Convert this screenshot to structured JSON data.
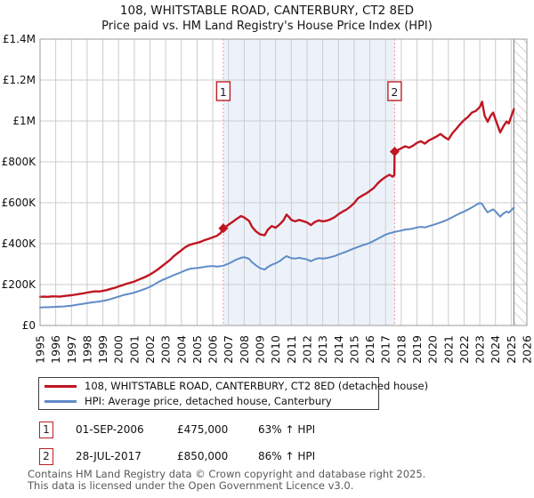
{
  "header": {
    "title": "108, WHITSTABLE ROAD, CANTERBURY, CT2 8ED",
    "subtitle": "Price paid vs. HM Land Registry's House Price Index (HPI)"
  },
  "legend": {
    "items": [
      {
        "label": "108, WHITSTABLE ROAD, CANTERBURY, CT2 8ED (detached house)",
        "color": "#c01622"
      },
      {
        "label": "HPI: Average price, detached house, Canterbury",
        "color": "#5f8cc8"
      }
    ]
  },
  "transactions": [
    {
      "num": "1",
      "date": "01-SEP-2006",
      "price": "£475,000",
      "hpi": "63% ↑ HPI"
    },
    {
      "num": "2",
      "date": "28-JUL-2017",
      "price": "£850,000",
      "hpi": "86% ↑ HPI"
    }
  ],
  "footer": {
    "line1": "Contains HM Land Registry data © Crown copyright and database right 2025.",
    "line2": "This data is licensed under the Open Government Licence v3.0."
  },
  "colors": {
    "property_line": "#c01622",
    "hpi_line": "#5f8cc8",
    "sale_dash": "#ef8c8c",
    "band_fill": "#edf2fa",
    "grid": "#cccccc",
    "plot_border": "#999999",
    "hatch": "#b8b8c0",
    "marker_box_border": "#b92025",
    "tick_text": "#111111"
  },
  "chart_data": {
    "type": "line",
    "title": "108, WHITSTABLE ROAD, CANTERBURY, CT2 8ED",
    "subtitle": "Price paid vs. HM Land Registry's House Price Index (HPI)",
    "unit": "GBP thousands",
    "xlim": [
      1995,
      2026
    ],
    "ylim": [
      0,
      1400
    ],
    "grid": true,
    "legend_position": "below",
    "x_ticks": [
      1995,
      1996,
      1997,
      1998,
      1999,
      2000,
      2001,
      2002,
      2003,
      2004,
      2005,
      2006,
      2007,
      2008,
      2009,
      2010,
      2011,
      2012,
      2013,
      2014,
      2015,
      2016,
      2017,
      2018,
      2019,
      2020,
      2021,
      2022,
      2023,
      2024,
      2025,
      2026
    ],
    "y_ticks": [
      {
        "value": 0,
        "label": "£0"
      },
      {
        "value": 200,
        "label": "£200K"
      },
      {
        "value": 400,
        "label": "£400K"
      },
      {
        "value": 600,
        "label": "£600K"
      },
      {
        "value": 800,
        "label": "£800K"
      },
      {
        "value": 1000,
        "label": "£1M"
      },
      {
        "value": 1200,
        "label": "£1.2M"
      },
      {
        "value": 1400,
        "label": "£1.4M"
      }
    ],
    "shaded_span": [
      2006.67,
      2017.58
    ],
    "hatch_span": [
      2025.17,
      2026
    ],
    "sales": [
      {
        "n": "1",
        "year": 2006.67,
        "date": "01-SEP-2006",
        "price_thousands": 475,
        "vs_hpi": "63% ↑ HPI"
      },
      {
        "n": "2",
        "year": 2017.58,
        "date": "28-JUL-2017",
        "price_thousands": 850,
        "vs_hpi": "86% ↑ HPI"
      }
    ],
    "series": [
      {
        "name": "108, WHITSTABLE ROAD, CANTERBURY, CT2 8ED (detached house)",
        "color": "#c01622",
        "width": 2.4,
        "points": [
          [
            1995.0,
            140
          ],
          [
            1995.25,
            141
          ],
          [
            1995.5,
            140
          ],
          [
            1995.75,
            142
          ],
          [
            1996.0,
            142
          ],
          [
            1996.25,
            141
          ],
          [
            1996.5,
            144
          ],
          [
            1996.75,
            146
          ],
          [
            1997.0,
            148
          ],
          [
            1997.25,
            151
          ],
          [
            1997.5,
            154
          ],
          [
            1997.75,
            157
          ],
          [
            1998.0,
            161
          ],
          [
            1998.25,
            164
          ],
          [
            1998.5,
            167
          ],
          [
            1998.75,
            166
          ],
          [
            1999.0,
            169
          ],
          [
            1999.25,
            173
          ],
          [
            1999.5,
            179
          ],
          [
            1999.75,
            184
          ],
          [
            2000.0,
            191
          ],
          [
            2000.25,
            197
          ],
          [
            2000.5,
            204
          ],
          [
            2000.75,
            209
          ],
          [
            2001.0,
            215
          ],
          [
            2001.25,
            223
          ],
          [
            2001.5,
            231
          ],
          [
            2001.75,
            239
          ],
          [
            2002.0,
            249
          ],
          [
            2002.25,
            261
          ],
          [
            2002.5,
            274
          ],
          [
            2002.75,
            289
          ],
          [
            2003.0,
            304
          ],
          [
            2003.25,
            319
          ],
          [
            2003.5,
            338
          ],
          [
            2003.75,
            353
          ],
          [
            2004.0,
            368
          ],
          [
            2004.25,
            383
          ],
          [
            2004.5,
            393
          ],
          [
            2004.75,
            399
          ],
          [
            2005.0,
            404
          ],
          [
            2005.25,
            410
          ],
          [
            2005.5,
            418
          ],
          [
            2005.75,
            424
          ],
          [
            2006.0,
            431
          ],
          [
            2006.25,
            438
          ],
          [
            2006.5,
            452
          ],
          [
            2006.67,
            475
          ],
          [
            2007.0,
            492
          ],
          [
            2007.25,
            506
          ],
          [
            2007.5,
            520
          ],
          [
            2007.8,
            535
          ],
          [
            2008.0,
            528
          ],
          [
            2008.3,
            512
          ],
          [
            2008.5,
            482
          ],
          [
            2008.75,
            460
          ],
          [
            2009.0,
            446
          ],
          [
            2009.3,
            441
          ],
          [
            2009.5,
            468
          ],
          [
            2009.75,
            486
          ],
          [
            2010.0,
            478
          ],
          [
            2010.25,
            494
          ],
          [
            2010.5,
            514
          ],
          [
            2010.7,
            542
          ],
          [
            2010.9,
            526
          ],
          [
            2011.0,
            516
          ],
          [
            2011.25,
            509
          ],
          [
            2011.5,
            516
          ],
          [
            2011.75,
            510
          ],
          [
            2012.0,
            504
          ],
          [
            2012.25,
            491
          ],
          [
            2012.5,
            506
          ],
          [
            2012.75,
            514
          ],
          [
            2013.0,
            509
          ],
          [
            2013.25,
            512
          ],
          [
            2013.5,
            519
          ],
          [
            2013.75,
            529
          ],
          [
            2014.0,
            544
          ],
          [
            2014.25,
            556
          ],
          [
            2014.5,
            566
          ],
          [
            2014.75,
            581
          ],
          [
            2015.0,
            598
          ],
          [
            2015.25,
            622
          ],
          [
            2015.5,
            634
          ],
          [
            2015.75,
            645
          ],
          [
            2016.0,
            658
          ],
          [
            2016.25,
            672
          ],
          [
            2016.5,
            695
          ],
          [
            2016.75,
            712
          ],
          [
            2017.0,
            726
          ],
          [
            2017.25,
            737
          ],
          [
            2017.45,
            728
          ],
          [
            2017.56,
            735
          ],
          [
            2017.58,
            850
          ],
          [
            2017.75,
            856
          ],
          [
            2018.0,
            866
          ],
          [
            2018.25,
            876
          ],
          [
            2018.5,
            869
          ],
          [
            2018.75,
            879
          ],
          [
            2019.0,
            893
          ],
          [
            2019.25,
            901
          ],
          [
            2019.5,
            889
          ],
          [
            2019.75,
            904
          ],
          [
            2020.0,
            914
          ],
          [
            2020.25,
            924
          ],
          [
            2020.5,
            936
          ],
          [
            2020.75,
            921
          ],
          [
            2021.0,
            909
          ],
          [
            2021.25,
            939
          ],
          [
            2021.5,
            961
          ],
          [
            2021.75,
            984
          ],
          [
            2022.0,
            1004
          ],
          [
            2022.25,
            1019
          ],
          [
            2022.5,
            1041
          ],
          [
            2022.75,
            1049
          ],
          [
            2023.0,
            1068
          ],
          [
            2023.15,
            1094
          ],
          [
            2023.3,
            1028
          ],
          [
            2023.5,
            996
          ],
          [
            2023.7,
            1026
          ],
          [
            2023.85,
            1041
          ],
          [
            2024.0,
            1008
          ],
          [
            2024.3,
            944
          ],
          [
            2024.5,
            973
          ],
          [
            2024.7,
            997
          ],
          [
            2024.85,
            988
          ],
          [
            2025.0,
            1022
          ],
          [
            2025.17,
            1058
          ]
        ]
      },
      {
        "name": "HPI: Average price, detached house, Canterbury",
        "color": "#5f8cc8",
        "width": 2,
        "points": [
          [
            1995.0,
            88
          ],
          [
            1995.25,
            89
          ],
          [
            1995.5,
            89
          ],
          [
            1995.75,
            90
          ],
          [
            1996.0,
            91
          ],
          [
            1996.25,
            92
          ],
          [
            1996.5,
            93
          ],
          [
            1996.75,
            95
          ],
          [
            1997.0,
            97
          ],
          [
            1997.25,
            100
          ],
          [
            1997.5,
            103
          ],
          [
            1997.75,
            106
          ],
          [
            1998.0,
            109
          ],
          [
            1998.25,
            112
          ],
          [
            1998.5,
            115
          ],
          [
            1998.75,
            117
          ],
          [
            1999.0,
            120
          ],
          [
            1999.25,
            124
          ],
          [
            1999.5,
            129
          ],
          [
            1999.75,
            135
          ],
          [
            2000.0,
            141
          ],
          [
            2000.25,
            147
          ],
          [
            2000.5,
            152
          ],
          [
            2000.75,
            156
          ],
          [
            2001.0,
            161
          ],
          [
            2001.25,
            167
          ],
          [
            2001.5,
            174
          ],
          [
            2001.75,
            181
          ],
          [
            2002.0,
            189
          ],
          [
            2002.25,
            199
          ],
          [
            2002.5,
            211
          ],
          [
            2002.75,
            221
          ],
          [
            2003.0,
            229
          ],
          [
            2003.25,
            237
          ],
          [
            2003.5,
            246
          ],
          [
            2003.75,
            253
          ],
          [
            2004.0,
            261
          ],
          [
            2004.25,
            269
          ],
          [
            2004.5,
            276
          ],
          [
            2004.75,
            279
          ],
          [
            2005.0,
            281
          ],
          [
            2005.25,
            284
          ],
          [
            2005.5,
            287
          ],
          [
            2005.75,
            289
          ],
          [
            2006.0,
            291
          ],
          [
            2006.25,
            288
          ],
          [
            2006.5,
            290
          ],
          [
            2006.67,
            292
          ],
          [
            2007.0,
            302
          ],
          [
            2007.25,
            312
          ],
          [
            2007.5,
            322
          ],
          [
            2007.8,
            331
          ],
          [
            2008.0,
            334
          ],
          [
            2008.3,
            326
          ],
          [
            2008.5,
            309
          ],
          [
            2008.75,
            294
          ],
          [
            2009.0,
            281
          ],
          [
            2009.3,
            273
          ],
          [
            2009.5,
            286
          ],
          [
            2009.75,
            297
          ],
          [
            2010.0,
            304
          ],
          [
            2010.25,
            314
          ],
          [
            2010.5,
            329
          ],
          [
            2010.7,
            339
          ],
          [
            2010.9,
            332
          ],
          [
            2011.0,
            329
          ],
          [
            2011.25,
            327
          ],
          [
            2011.5,
            331
          ],
          [
            2011.75,
            327
          ],
          [
            2012.0,
            323
          ],
          [
            2012.25,
            314
          ],
          [
            2012.5,
            324
          ],
          [
            2012.75,
            329
          ],
          [
            2013.0,
            327
          ],
          [
            2013.25,
            329
          ],
          [
            2013.5,
            334
          ],
          [
            2013.75,
            339
          ],
          [
            2014.0,
            347
          ],
          [
            2014.25,
            354
          ],
          [
            2014.5,
            361
          ],
          [
            2014.75,
            369
          ],
          [
            2015.0,
            377
          ],
          [
            2015.25,
            384
          ],
          [
            2015.5,
            391
          ],
          [
            2015.75,
            397
          ],
          [
            2016.0,
            404
          ],
          [
            2016.25,
            414
          ],
          [
            2016.5,
            424
          ],
          [
            2016.75,
            434
          ],
          [
            2017.0,
            444
          ],
          [
            2017.25,
            451
          ],
          [
            2017.58,
            457
          ],
          [
            2017.75,
            460
          ],
          [
            2018.0,
            464
          ],
          [
            2018.25,
            469
          ],
          [
            2018.5,
            471
          ],
          [
            2018.75,
            474
          ],
          [
            2019.0,
            479
          ],
          [
            2019.25,
            482
          ],
          [
            2019.5,
            479
          ],
          [
            2019.75,
            485
          ],
          [
            2020.0,
            491
          ],
          [
            2020.25,
            497
          ],
          [
            2020.5,
            504
          ],
          [
            2020.75,
            511
          ],
          [
            2021.0,
            519
          ],
          [
            2021.25,
            529
          ],
          [
            2021.5,
            539
          ],
          [
            2021.75,
            549
          ],
          [
            2022.0,
            557
          ],
          [
            2022.25,
            567
          ],
          [
            2022.5,
            577
          ],
          [
            2022.75,
            589
          ],
          [
            2023.0,
            599
          ],
          [
            2023.15,
            594
          ],
          [
            2023.3,
            574
          ],
          [
            2023.5,
            553
          ],
          [
            2023.7,
            562
          ],
          [
            2023.85,
            568
          ],
          [
            2024.0,
            558
          ],
          [
            2024.3,
            532
          ],
          [
            2024.5,
            547
          ],
          [
            2024.7,
            557
          ],
          [
            2024.85,
            552
          ],
          [
            2025.0,
            563
          ],
          [
            2025.17,
            576
          ]
        ]
      }
    ]
  }
}
